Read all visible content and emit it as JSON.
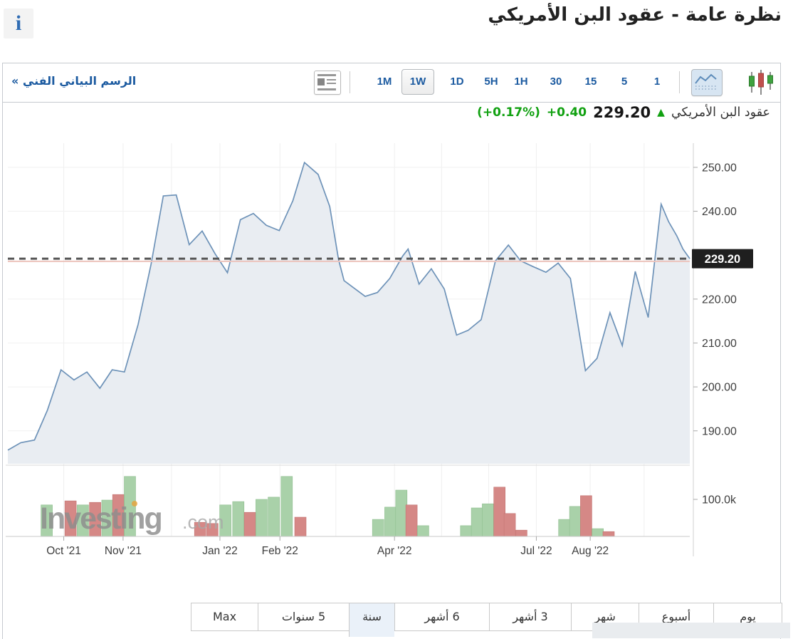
{
  "header": {
    "title": "نظرة عامة - عقود البن الأمريكي",
    "info_icon_glyph": "i"
  },
  "toolbar": {
    "technical_chart_link": "الرسم البياني الفني »",
    "timeframes": [
      "1M",
      "1W",
      "1D",
      "5H",
      "1H",
      "30",
      "15",
      "5",
      "1"
    ],
    "selected_timeframe": "1W",
    "icons": [
      "news-layout-icon",
      "area-chart-type-icon",
      "candlestick-chart-type-icon"
    ]
  },
  "quote": {
    "name": "عقود البن الأمريكي",
    "arrow_glyph": "▲",
    "price": "229.20",
    "change": "+0.40",
    "change_pct": "(+0.17%)",
    "up_color": "#11a111"
  },
  "watermark": {
    "text_main": "Investing",
    "text_suffix": ".com"
  },
  "footer_tabs": {
    "items": [
      "يوم",
      "أسبوع",
      "شهر",
      "3 أشهر",
      "6 أشهر",
      "سنة",
      "5 سنوات",
      "Max"
    ],
    "selected_index": 5
  },
  "chart_data": {
    "type": "area",
    "title": "عقود البن الأمريكي",
    "interval": "1W",
    "last_price": 229.2,
    "prev_close": 228.6,
    "price_axis_tag": "229.20",
    "ylim": [
      182.5,
      255.5
    ],
    "yticks": [
      250,
      240,
      220,
      210,
      200,
      190
    ],
    "volume_axis_tick": {
      "value_k": 100,
      "label": "100.0k"
    },
    "months": [
      {
        "frac": 8.2,
        "label": "Oct '21"
      },
      {
        "frac": 16.9,
        "label": "Nov '21"
      },
      {
        "frac": 24.0,
        "label": null
      },
      {
        "frac": 31.1,
        "label": "Jan '22"
      },
      {
        "frac": 39.9,
        "label": "Feb '22"
      },
      {
        "frac": 48.1,
        "label": null
      },
      {
        "frac": 56.7,
        "label": "Apr '22"
      },
      {
        "frac": 63.6,
        "label": null
      },
      {
        "frac": 70.5,
        "label": null
      },
      {
        "frac": 77.5,
        "label": "Jul '22"
      },
      {
        "frac": 85.4,
        "label": "Aug '22"
      },
      {
        "frac": 93.3,
        "label": null
      }
    ],
    "price_points": [
      [
        0,
        185.6
      ],
      [
        1.9,
        187.3
      ],
      [
        3.9,
        187.9
      ],
      [
        5.8,
        194.7
      ],
      [
        7.8,
        203.9
      ],
      [
        9.7,
        201.6
      ],
      [
        11.6,
        203.4
      ],
      [
        13.5,
        199.7
      ],
      [
        15.3,
        203.9
      ],
      [
        17.1,
        203.4
      ],
      [
        19.1,
        214.2
      ],
      [
        21,
        227.9
      ],
      [
        22.8,
        243.5
      ],
      [
        24.7,
        243.7
      ],
      [
        26.6,
        232.4
      ],
      [
        28.5,
        235.5
      ],
      [
        30.4,
        230.3
      ],
      [
        32.2,
        226
      ],
      [
        34.1,
        238.1
      ],
      [
        36,
        239.5
      ],
      [
        37.9,
        236.8
      ],
      [
        39.8,
        235.6
      ],
      [
        41.8,
        242.4
      ],
      [
        43.5,
        251.1
      ],
      [
        45.5,
        248.4
      ],
      [
        47.2,
        241.1
      ],
      [
        48.5,
        229
      ],
      [
        49.3,
        224.2
      ],
      [
        50.6,
        222.7
      ],
      [
        52.4,
        220.6
      ],
      [
        54.2,
        221.5
      ],
      [
        56,
        224.7
      ],
      [
        57.9,
        229.8
      ],
      [
        58.7,
        231.4
      ],
      [
        60.3,
        223.4
      ],
      [
        62.1,
        226.9
      ],
      [
        64,
        222.3
      ],
      [
        65.8,
        211.8
      ],
      [
        67.5,
        212.9
      ],
      [
        69.4,
        215.3
      ],
      [
        71.5,
        228.7
      ],
      [
        73.4,
        232.3
      ],
      [
        75.2,
        228.7
      ],
      [
        77,
        227.4
      ],
      [
        78.9,
        226.1
      ],
      [
        80.7,
        228.2
      ],
      [
        82.5,
        224.7
      ],
      [
        84.7,
        203.7
      ],
      [
        86.4,
        206.5
      ],
      [
        88.3,
        216.9
      ],
      [
        90.1,
        209.4
      ],
      [
        92,
        226.3
      ],
      [
        93.9,
        215.8
      ],
      [
        95.8,
        241.6
      ],
      [
        96.9,
        237.6
      ],
      [
        98.1,
        234.4
      ],
      [
        99,
        231.4
      ],
      [
        100,
        229.2
      ]
    ],
    "volume_bars_k": [
      [
        5.7,
        85,
        "up"
      ],
      [
        9.2,
        96,
        "down"
      ],
      [
        11,
        85,
        "up"
      ],
      [
        12.8,
        92,
        "down"
      ],
      [
        14.6,
        98,
        "up"
      ],
      [
        16.2,
        113,
        "down"
      ],
      [
        17.9,
        162,
        "up"
      ],
      [
        28.2,
        38,
        "down"
      ],
      [
        30,
        35,
        "down"
      ],
      [
        31.9,
        85,
        "up"
      ],
      [
        33.8,
        94,
        "up"
      ],
      [
        35.5,
        65,
        "down"
      ],
      [
        37.2,
        100,
        "up"
      ],
      [
        39,
        106,
        "up"
      ],
      [
        40.9,
        162,
        "up"
      ],
      [
        42.9,
        52,
        "down"
      ],
      [
        54.3,
        46,
        "up"
      ],
      [
        56.1,
        79,
        "up"
      ],
      [
        57.7,
        125,
        "up"
      ],
      [
        59.2,
        85,
        "down"
      ],
      [
        60.9,
        29,
        "up"
      ],
      [
        67.2,
        29,
        "up"
      ],
      [
        68.8,
        77,
        "up"
      ],
      [
        70.4,
        88,
        "up"
      ],
      [
        72.1,
        133,
        "down"
      ],
      [
        73.6,
        62,
        "down"
      ],
      [
        75.3,
        17,
        "down"
      ],
      [
        81.6,
        46,
        "up"
      ],
      [
        83.2,
        81,
        "up"
      ],
      [
        84.8,
        110,
        "down"
      ],
      [
        86.5,
        21,
        "up"
      ],
      [
        88.1,
        13,
        "down"
      ]
    ],
    "colors": {
      "line": "#6d92b8",
      "fill": "#e9edf2",
      "vol_up": "#a9d1a9",
      "vol_up_edge": "#8fbf8f",
      "vol_down": "#d58886",
      "vol_down_edge": "#c37472",
      "last_price_dash": "#555555",
      "prev_close_line": "#edc4bd",
      "tag_bg": "#1f1f1f",
      "tag_text": "#ffffff",
      "watermark_gray": "#8d8d8d",
      "watermark_dot": "#e8a33d"
    }
  }
}
